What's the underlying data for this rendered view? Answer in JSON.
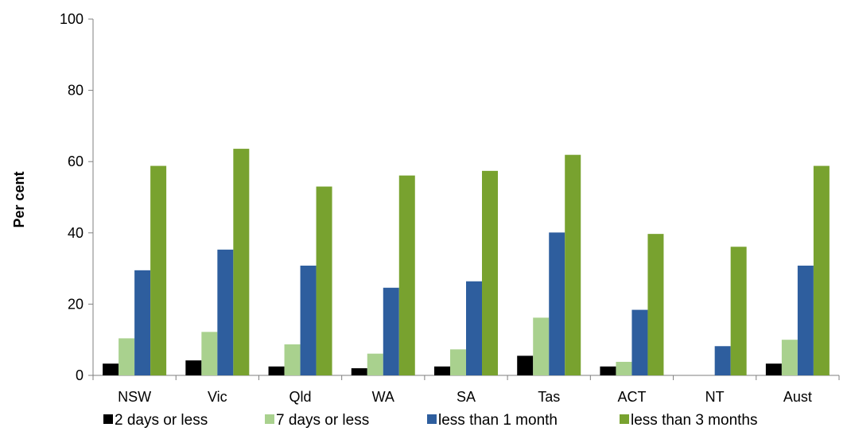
{
  "chart_data": {
    "type": "bar",
    "title": "",
    "xlabel": "",
    "ylabel": "Per cent",
    "ylim": [
      0,
      100
    ],
    "yticks": [
      0,
      20,
      40,
      60,
      80,
      100
    ],
    "grid": false,
    "legend_position": "bottom",
    "categories": [
      "NSW",
      "Vic",
      "Qld",
      "WA",
      "SA",
      "Tas",
      "ACT",
      "NT",
      "Aust"
    ],
    "series": [
      {
        "name": "2 days or less",
        "color": "#000000",
        "values": [
          3.3,
          4.2,
          2.5,
          2.0,
          2.5,
          5.5,
          2.5,
          0,
          3.3
        ]
      },
      {
        "name": "7 days or less",
        "color": "#a9d18e",
        "values": [
          10.4,
          12.2,
          8.7,
          6.1,
          7.3,
          16.2,
          3.8,
          0,
          10.0
        ]
      },
      {
        "name": "less than 1 month",
        "color": "#2e5e9e",
        "values": [
          29.5,
          35.3,
          30.8,
          24.6,
          26.4,
          40.1,
          18.4,
          8.2,
          30.8
        ]
      },
      {
        "name": "less than 3 months",
        "color": "#78a22f",
        "values": [
          58.8,
          63.6,
          53.0,
          56.1,
          57.4,
          61.9,
          39.7,
          36.1,
          58.8
        ]
      }
    ]
  }
}
